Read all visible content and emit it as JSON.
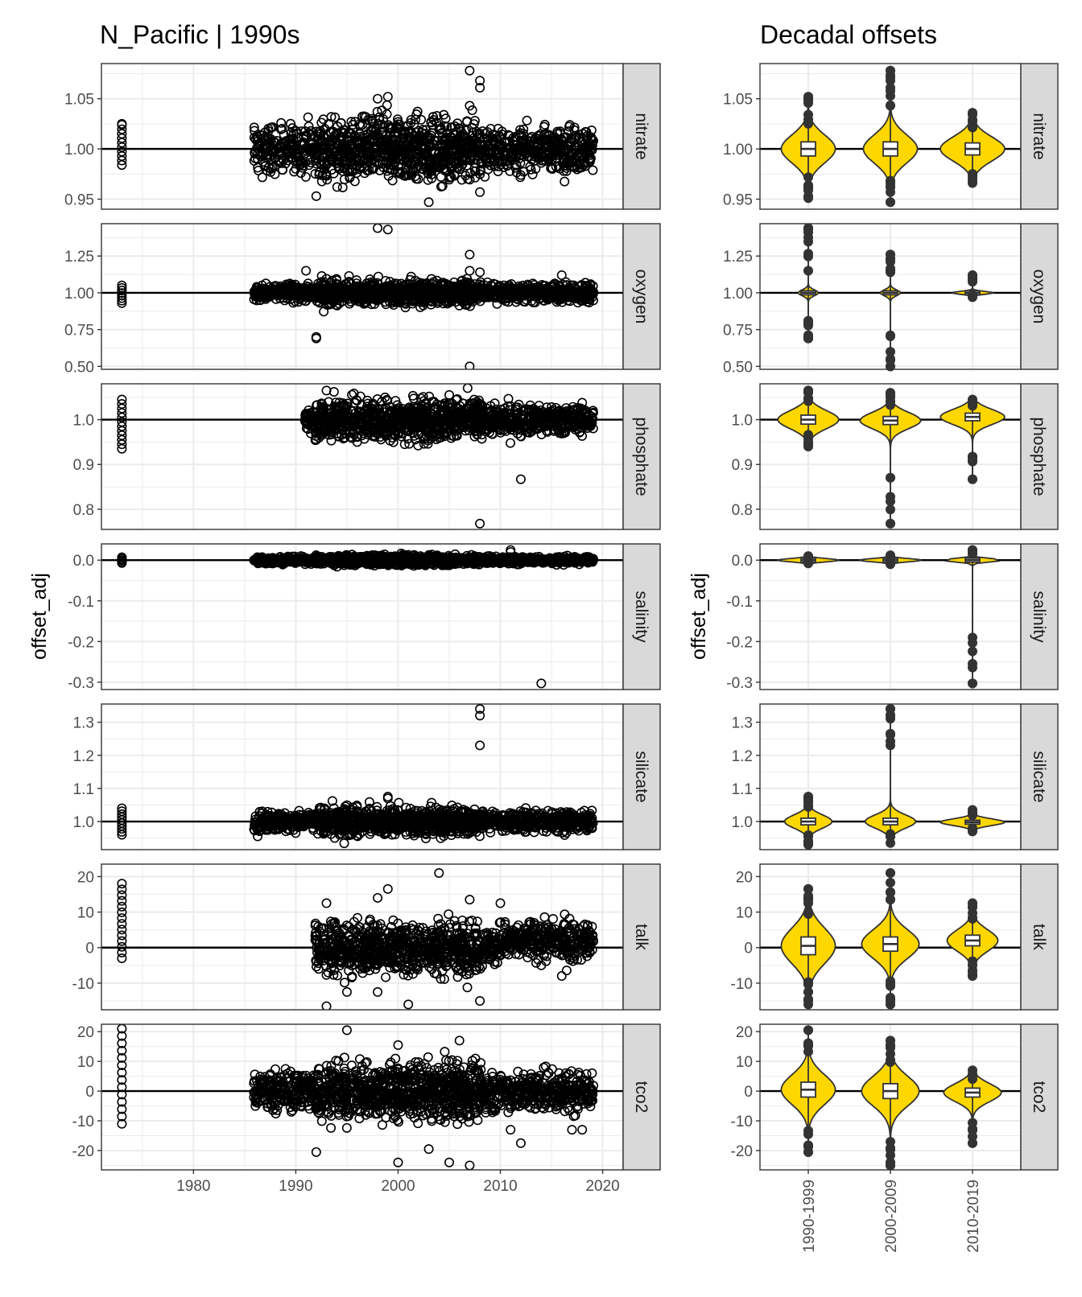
{
  "figure": {
    "left_title": "N_Pacific | 1990s",
    "right_title": "Decadal offsets",
    "ylabel": "offset_adj",
    "background": "#ffffff",
    "strip_fill": "#d9d9d9",
    "violin_fill": "#ffd700",
    "grid_color": "#ebebeb"
  },
  "chart_data": [
    {
      "type": "scatter",
      "title": "N_Pacific | 1990s",
      "xlabel": "",
      "ylabel": "offset_adj",
      "xlim": [
        1971,
        2022
      ],
      "x_ticks": [
        1980,
        1990,
        2000,
        2010,
        2020
      ],
      "x_tick_labels": [
        "1980",
        "1990",
        "2000",
        "2010",
        "2020"
      ],
      "reference_lines": "y = 1 for ratio parameters, y = 0 for salinity, talk, tco2",
      "panels": [
        {
          "name": "nitrate",
          "ylim": [
            0.94,
            1.085
          ],
          "y_ticks": [
            0.95,
            1.0,
            1.05
          ],
          "y_tick_labels": [
            "0.95",
            "1.00",
            "1.05"
          ],
          "ref": 1.0,
          "spread": 0.013,
          "clusters": [
            [
              1973,
              0.984,
              1.024,
              10
            ]
          ],
          "outliers": [
            [
              1973,
              1.025
            ],
            [
              1992,
              0.953
            ],
            [
              2003,
              0.947
            ],
            [
              2007,
              1.078
            ],
            [
              2008,
              1.068
            ],
            [
              2008,
              1.061
            ],
            [
              2007,
              1.043
            ],
            [
              1998,
              1.05
            ],
            [
              1999,
              1.052
            ],
            [
              2012,
              0.974
            ],
            [
              2008,
              0.957
            ]
          ]
        },
        {
          "name": "oxygen",
          "ylim": [
            0.48,
            1.47
          ],
          "y_ticks": [
            0.5,
            0.75,
            1.0,
            1.25
          ],
          "y_tick_labels": [
            "0.50",
            "0.75",
            "1.00",
            "1.25"
          ],
          "ref": 1.0,
          "spread": 0.035,
          "clusters": [
            [
              1973,
              0.93,
              1.05,
              8
            ]
          ],
          "outliers": [
            [
              1998,
              1.44
            ],
            [
              1999,
              1.43
            ],
            [
              1992,
              0.69
            ],
            [
              1992,
              0.7
            ],
            [
              2007,
              1.26
            ],
            [
              2007,
              0.5
            ],
            [
              1991,
              1.15
            ],
            [
              2016,
              1.12
            ],
            [
              2007,
              1.15
            ],
            [
              2008,
              1.14
            ]
          ]
        },
        {
          "name": "phosphate",
          "ylim": [
            0.755,
            1.08
          ],
          "y_ticks": [
            0.8,
            0.9,
            1.0
          ],
          "y_tick_labels": [
            "0.8",
            "0.9",
            "1.0"
          ],
          "ref": 1.0,
          "spread": 0.02,
          "clusters": [
            [
              1973,
              0.935,
              1.045,
              12
            ]
          ],
          "outliers": [
            [
              2012,
              0.867
            ],
            [
              2008,
              0.768
            ],
            [
              1993,
              1.065
            ],
            [
              2005,
              1.055
            ],
            [
              1996,
              0.95
            ]
          ]
        },
        {
          "name": "salinity",
          "ylim": [
            -0.318,
            0.04
          ],
          "y_ticks": [
            -0.3,
            -0.2,
            -0.1,
            0.0
          ],
          "y_tick_labels": [
            "-0.3",
            "-0.2",
            "-0.1",
            "0.0"
          ],
          "ref": 0.0,
          "spread": 0.005,
          "clusters": [
            [
              1973,
              -0.007,
              0.007,
              5
            ]
          ],
          "outliers": [
            [
              2014,
              -0.303
            ],
            [
              2011,
              0.025
            ],
            [
              2011,
              0.02
            ]
          ]
        },
        {
          "name": "silicate",
          "ylim": [
            0.915,
            1.355
          ],
          "y_ticks": [
            1.0,
            1.1,
            1.2,
            1.3
          ],
          "y_tick_labels": [
            "1.0",
            "1.1",
            "1.2",
            "1.3"
          ],
          "ref": 1.0,
          "spread": 0.018,
          "clusters": [
            [
              1973,
              0.96,
              1.04,
              10
            ]
          ],
          "outliers": [
            [
              2008,
              1.34
            ],
            [
              2008,
              1.32
            ],
            [
              2008,
              1.23
            ],
            [
              1999,
              1.075
            ],
            [
              1999,
              1.07
            ]
          ]
        },
        {
          "name": "talk",
          "ylim": [
            -17.5,
            23.5
          ],
          "y_ticks": [
            -10,
            0,
            10,
            20
          ],
          "y_tick_labels": [
            "-10",
            "0",
            "10",
            "20"
          ],
          "ref": 0.0,
          "spread": 3.2,
          "clusters": [
            [
              1973,
              -3,
              18,
              14
            ]
          ],
          "outliers": [
            [
              2004,
              21
            ],
            [
              1999,
              16.5
            ],
            [
              1998,
              14
            ],
            [
              2007,
              13.5
            ],
            [
              2010,
              12.5
            ],
            [
              1993,
              12.5
            ],
            [
              1993,
              -16.5
            ],
            [
              2001,
              -16
            ],
            [
              2008,
              -15
            ],
            [
              1998,
              -12.5
            ],
            [
              1995,
              -12.5
            ],
            [
              2014,
              -5
            ],
            [
              2016,
              -8
            ]
          ]
        },
        {
          "name": "tco2",
          "ylim": [
            -26.5,
            22.5
          ],
          "y_ticks": [
            -20,
            -10,
            0,
            10,
            20
          ],
          "y_tick_labels": [
            "-20",
            "-10",
            "0",
            "10",
            "20"
          ],
          "ref": 0.0,
          "spread": 4.0,
          "clusters": [
            [
              1973,
              -11,
              21,
              14
            ]
          ],
          "outliers": [
            [
              1995,
              20.5
            ],
            [
              2006,
              17
            ],
            [
              2000,
              15.5
            ],
            [
              2007,
              -25
            ],
            [
              2000,
              -24
            ],
            [
              2005,
              -24
            ],
            [
              2003,
              -19.5
            ],
            [
              1992,
              -20.5
            ],
            [
              2012,
              -17.5
            ],
            [
              2017,
              -13
            ],
            [
              2018,
              -13
            ],
            [
              2011,
              -13
            ]
          ]
        }
      ]
    },
    {
      "type": "violin",
      "title": "Decadal offsets",
      "ylabel": "offset_adj",
      "categories": [
        "1990-1999",
        "2000-2009",
        "2010-2019"
      ],
      "panels": [
        {
          "name": "nitrate",
          "series": [
            {
              "decade": "1990-1999",
              "min": 0.951,
              "q1": 0.993,
              "median": 1.0,
              "q3": 1.007,
              "max": 1.052,
              "width": 0.8
            },
            {
              "decade": "2000-2009",
              "min": 0.947,
              "q1": 0.993,
              "median": 1.0,
              "q3": 1.007,
              "max": 1.078,
              "width": 0.8
            },
            {
              "decade": "2010-2019",
              "min": 0.966,
              "q1": 0.994,
              "median": 1.0,
              "q3": 1.006,
              "max": 1.036,
              "width": 0.95
            }
          ]
        },
        {
          "name": "oxygen",
          "series": [
            {
              "decade": "1990-1999",
              "min": 0.69,
              "q1": 0.99,
              "median": 1.0,
              "q3": 1.01,
              "max": 1.44,
              "width": 0.3
            },
            {
              "decade": "2000-2009",
              "min": 0.5,
              "q1": 0.99,
              "median": 1.0,
              "q3": 1.01,
              "max": 1.26,
              "width": 0.3
            },
            {
              "decade": "2010-2019",
              "min": 0.97,
              "q1": 0.995,
              "median": 1.0,
              "q3": 1.005,
              "max": 1.12,
              "width": 0.6
            }
          ]
        },
        {
          "name": "phosphate",
          "series": [
            {
              "decade": "1990-1999",
              "min": 0.94,
              "q1": 0.99,
              "median": 1.0,
              "q3": 1.01,
              "max": 1.065,
              "width": 0.9
            },
            {
              "decade": "2000-2009",
              "min": 0.768,
              "q1": 0.99,
              "median": 0.998,
              "q3": 1.008,
              "max": 1.06,
              "width": 0.9
            },
            {
              "decade": "2010-2019",
              "min": 0.867,
              "q1": 0.998,
              "median": 1.006,
              "q3": 1.015,
              "max": 1.045,
              "width": 0.95
            }
          ]
        },
        {
          "name": "salinity",
          "series": [
            {
              "decade": "1990-1999",
              "min": -0.008,
              "q1": -0.002,
              "median": 0.0,
              "q3": 0.002,
              "max": 0.01,
              "width": 0.9
            },
            {
              "decade": "2000-2009",
              "min": -0.01,
              "q1": -0.002,
              "median": 0.0,
              "q3": 0.002,
              "max": 0.012,
              "width": 0.9
            },
            {
              "decade": "2010-2019",
              "min": -0.303,
              "q1": -0.002,
              "median": 0.0,
              "q3": 0.002,
              "max": 0.025,
              "width": 0.9
            }
          ]
        },
        {
          "name": "silicate",
          "series": [
            {
              "decade": "1990-1999",
              "min": 0.93,
              "q1": 0.99,
              "median": 1.0,
              "q3": 1.01,
              "max": 1.075,
              "width": 0.7
            },
            {
              "decade": "2000-2009",
              "min": 0.935,
              "q1": 0.99,
              "median": 1.0,
              "q3": 1.01,
              "max": 1.34,
              "width": 0.75
            },
            {
              "decade": "2010-2019",
              "min": 0.97,
              "q1": 0.993,
              "median": 0.998,
              "q3": 1.003,
              "max": 1.035,
              "width": 0.95
            }
          ]
        },
        {
          "name": "talk",
          "series": [
            {
              "decade": "1990-1999",
              "min": -16,
              "q1": -2,
              "median": 0.5,
              "q3": 3,
              "max": 16.5,
              "width": 0.8
            },
            {
              "decade": "2000-2009",
              "min": -16,
              "q1": -1,
              "median": 1,
              "q3": 3,
              "max": 21,
              "width": 0.85
            },
            {
              "decade": "2010-2019",
              "min": -8,
              "q1": 0.5,
              "median": 2,
              "q3": 3.5,
              "max": 12.5,
              "width": 0.75
            }
          ]
        },
        {
          "name": "tco2",
          "series": [
            {
              "decade": "1990-1999",
              "min": -20.5,
              "q1": -2.5,
              "median": 0.5,
              "q3": 2.5,
              "max": 20.5,
              "width": 0.8
            },
            {
              "decade": "2000-2009",
              "min": -25,
              "q1": -3,
              "median": 0,
              "q3": 2,
              "max": 17,
              "width": 0.85
            },
            {
              "decade": "2010-2019",
              "min": -17.5,
              "q1": -2,
              "median": -0.5,
              "q3": 1,
              "max": 7,
              "width": 0.85
            }
          ]
        }
      ]
    }
  ]
}
